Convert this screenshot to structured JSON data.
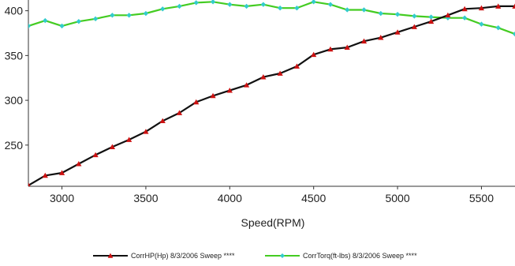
{
  "chart_data": {
    "type": "line",
    "xlabel": "Speed(RPM)",
    "ylabel": "",
    "xlim": [
      2800,
      5700
    ],
    "ylim": [
      204,
      412
    ],
    "x_ticks": [
      3000,
      3500,
      4000,
      4500,
      5000,
      5500
    ],
    "y_ticks": [
      250,
      300,
      350,
      400
    ],
    "grid": false,
    "legend_position": "bottom",
    "series": [
      {
        "name": "CorrHP(Hp) 8/3/2006 Sweep ****",
        "line_color": "#111111",
        "marker_color": "#cc1111",
        "marker": "triangle",
        "points": [
          [
            2800,
            205
          ],
          [
            2900,
            216
          ],
          [
            3000,
            219
          ],
          [
            3100,
            229
          ],
          [
            3200,
            239
          ],
          [
            3300,
            248
          ],
          [
            3400,
            256
          ],
          [
            3500,
            265
          ],
          [
            3600,
            277
          ],
          [
            3700,
            286
          ],
          [
            3800,
            298
          ],
          [
            3900,
            305
          ],
          [
            4000,
            311
          ],
          [
            4100,
            317
          ],
          [
            4200,
            326
          ],
          [
            4300,
            330
          ],
          [
            4400,
            338
          ],
          [
            4500,
            351
          ],
          [
            4600,
            357
          ],
          [
            4700,
            359
          ],
          [
            4800,
            366
          ],
          [
            4900,
            370
          ],
          [
            5000,
            376
          ],
          [
            5100,
            382
          ],
          [
            5200,
            388
          ],
          [
            5300,
            395
          ],
          [
            5400,
            402
          ],
          [
            5500,
            403
          ],
          [
            5600,
            405
          ],
          [
            5700,
            405
          ]
        ]
      },
      {
        "name": "CorrTorq(ft-lbs) 8/3/2006 Sweep ****",
        "line_color": "#44cc22",
        "marker_color": "#33cccc",
        "marker": "diamond",
        "points": [
          [
            2800,
            383
          ],
          [
            2900,
            389
          ],
          [
            3000,
            383
          ],
          [
            3100,
            388
          ],
          [
            3200,
            391
          ],
          [
            3300,
            395
          ],
          [
            3400,
            395
          ],
          [
            3500,
            397
          ],
          [
            3600,
            402
          ],
          [
            3700,
            405
          ],
          [
            3800,
            409
          ],
          [
            3900,
            410
          ],
          [
            4000,
            407
          ],
          [
            4100,
            405
          ],
          [
            4200,
            407
          ],
          [
            4300,
            403
          ],
          [
            4400,
            403
          ],
          [
            4500,
            410
          ],
          [
            4600,
            407
          ],
          [
            4700,
            401
          ],
          [
            4800,
            401
          ],
          [
            4900,
            397
          ],
          [
            5000,
            396
          ],
          [
            5100,
            394
          ],
          [
            5200,
            393
          ],
          [
            5300,
            392
          ],
          [
            5400,
            392
          ],
          [
            5500,
            385
          ],
          [
            5600,
            381
          ],
          [
            5700,
            374
          ]
        ]
      }
    ]
  }
}
